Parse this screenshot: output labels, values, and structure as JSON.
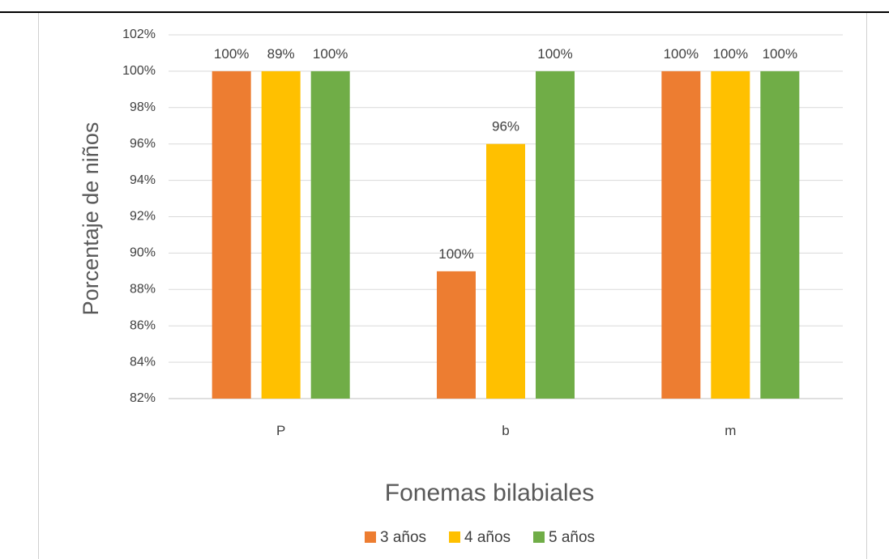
{
  "chart_data": {
    "type": "bar",
    "categories": [
      "P",
      "b",
      "m"
    ],
    "series": [
      {
        "name": "3 años",
        "color": "#ED7D31",
        "values": [
          100,
          89,
          100
        ]
      },
      {
        "name": "4 años",
        "color": "#FFC000",
        "values": [
          100,
          96,
          100
        ]
      },
      {
        "name": "5 años",
        "color": "#70AD47",
        "values": [
          100,
          100,
          100
        ]
      }
    ],
    "data_labels": [
      [
        "100%",
        "89%",
        "100%"
      ],
      [
        "100%",
        "96%",
        "100%"
      ],
      [
        "100%",
        "100%",
        "100%"
      ]
    ],
    "xlabel": "Fonemas bilabiales",
    "ylabel": "Porcentaje de niños",
    "ylim": [
      82,
      102
    ],
    "yticks": [
      82,
      84,
      86,
      88,
      90,
      92,
      94,
      96,
      98,
      100,
      102
    ],
    "ytick_labels": [
      "82%",
      "84%",
      "86%",
      "88%",
      "90%",
      "92%",
      "94%",
      "96%",
      "98%",
      "100%",
      "102%"
    ],
    "grid": true,
    "legend_position": "bottom"
  }
}
